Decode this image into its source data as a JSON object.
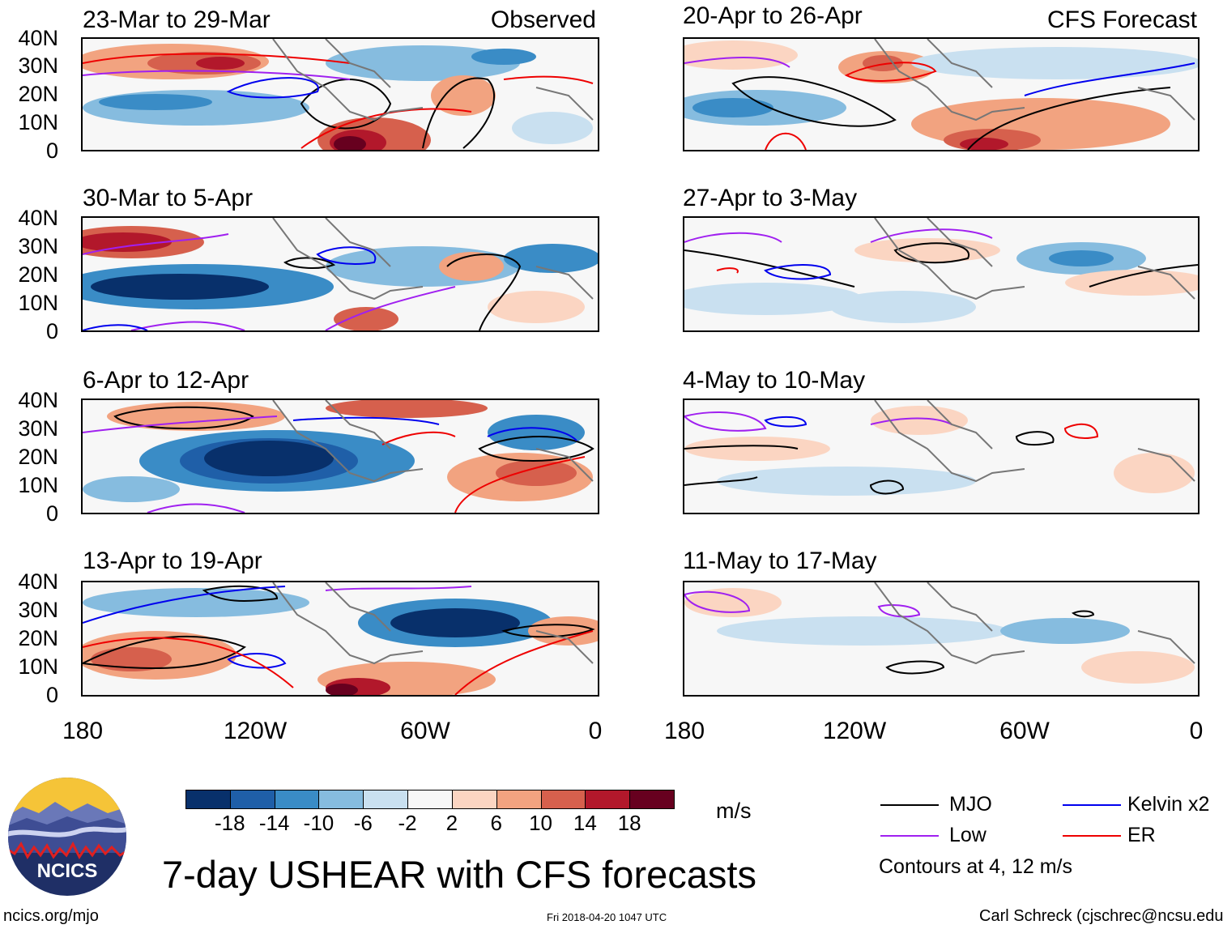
{
  "figure": {
    "title": "7-day USHEAR with CFS forecasts",
    "units": "m/s",
    "website": "ncics.org/mjo",
    "timestamp": "Fri 2018-04-20 1047 UTC",
    "author": "Carl Schreck (cjschrec@ncsu.edu)",
    "logo_text": "NCICS"
  },
  "columns": {
    "left_tag": "Observed",
    "right_tag": "CFS Forecast"
  },
  "panels": {
    "left": [
      {
        "title": "23-Mar to 29-Mar"
      },
      {
        "title": "30-Mar to 5-Apr"
      },
      {
        "title": "6-Apr to 12-Apr"
      },
      {
        "title": "13-Apr to 19-Apr"
      }
    ],
    "right": [
      {
        "title": "20-Apr to 26-Apr"
      },
      {
        "title": "27-Apr to 3-May"
      },
      {
        "title": "4-May to 10-May"
      },
      {
        "title": "11-May to 17-May"
      }
    ]
  },
  "axes": {
    "y_labels": [
      "40N",
      "30N",
      "20N",
      "10N",
      "0"
    ],
    "x_labels": [
      "180",
      "120W",
      "60W",
      "0"
    ]
  },
  "colorbar": {
    "labels": [
      "-18",
      "-14",
      "-10",
      "-6",
      "-2",
      "2",
      "6",
      "10",
      "14",
      "18"
    ],
    "colors": [
      "#08306b",
      "#1f5fa8",
      "#3a8cc6",
      "#86bcdf",
      "#c9e0f0",
      "#f7f7f7",
      "#fbd5c2",
      "#f2a380",
      "#d6604d",
      "#b2182b",
      "#67001f"
    ]
  },
  "legend": {
    "items": [
      {
        "label": "MJO",
        "color": "#000000"
      },
      {
        "label": "Kelvin x2",
        "color": "#0000ee"
      },
      {
        "label": "Low",
        "color": "#a020f0"
      },
      {
        "label": "ER",
        "color": "#ee0000"
      }
    ],
    "note": "Contours at 4, 12 m/s"
  }
}
